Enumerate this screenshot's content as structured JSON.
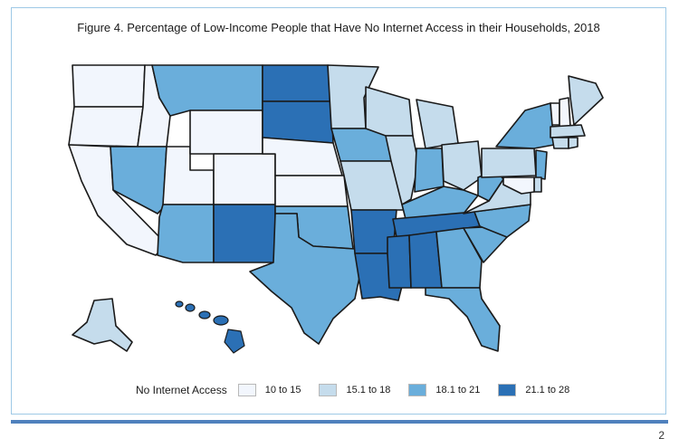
{
  "figure": {
    "title": "Figure 4. Percentage of Low-Income People that Have No Internet Access in their Households, 2018"
  },
  "colors": {
    "c1": "#f2f6fd",
    "c2": "#c5dcec",
    "c3": "#6aaedb",
    "c4": "#2b70b5",
    "border": "#1a1a1a"
  },
  "legend": {
    "title": "No Internet Access",
    "items": [
      {
        "label": "10 to 15",
        "color": "#f2f6fd"
      },
      {
        "label": "15.1 to 18",
        "color": "#c5dcec"
      },
      {
        "label": "18.1 to 21",
        "color": "#6aaedb"
      },
      {
        "label": "21.1 to 28",
        "color": "#2b70b5"
      }
    ]
  },
  "map_data": {
    "classes": [
      "10 to 15",
      "15.1 to 18",
      "18.1 to 21",
      "21.1 to 28"
    ],
    "states": {
      "WA": 1,
      "OR": 1,
      "CA": 1,
      "ID": 1,
      "NV": 3,
      "UT": 1,
      "AZ": 3,
      "MT": 3,
      "WY": 1,
      "CO": 1,
      "NM": 4,
      "ND": 4,
      "SD": 4,
      "NE": 1,
      "KS": 1,
      "OK": 3,
      "TX": 3,
      "MN": 2,
      "IA": 3,
      "MO": 2,
      "AR": 4,
      "LA": 4,
      "WI": 2,
      "IL": 2,
      "MI": 2,
      "IN": 3,
      "OH": 2,
      "KY": 3,
      "TN": 4,
      "MS": 4,
      "AL": 4,
      "GA": 3,
      "FL": 3,
      "SC": 3,
      "NC": 3,
      "VA": 2,
      "WV": 3,
      "PA": 2,
      "NY": 3,
      "VT": 1,
      "NH": 1,
      "ME": 2,
      "MA": 2,
      "RI": 2,
      "CT": 2,
      "NJ": 3,
      "DE": 2,
      "MD": 1,
      "AK": 2,
      "HI": 4
    }
  },
  "page": {
    "number": "2"
  }
}
